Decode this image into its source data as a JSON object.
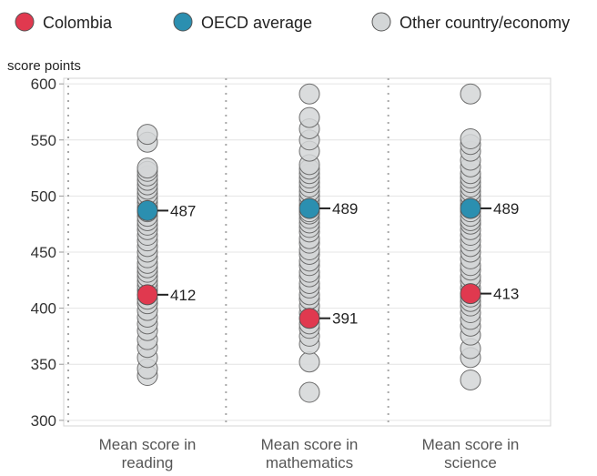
{
  "chart_data": {
    "type": "scatter",
    "ylabel": "score points",
    "ylim": [
      300,
      600
    ],
    "yticks": [
      300,
      350,
      400,
      450,
      500,
      550,
      600
    ],
    "grid": true,
    "legend_position": "top",
    "legend": [
      {
        "label": "Colombia",
        "color": "#e0394f"
      },
      {
        "label": "OECD average",
        "color": "#2b8fb0"
      },
      {
        "label": "Other country/economy",
        "color": "#d3d6d7"
      }
    ],
    "categories": [
      [
        "Mean score in",
        "reading"
      ],
      [
        "Mean score in",
        "mathematics"
      ],
      [
        "Mean score in",
        "science"
      ]
    ],
    "series": [
      {
        "name": "Other country/economy",
        "values": [
          [
            340,
            346,
            356,
            365,
            372,
            380,
            386,
            392,
            398,
            404,
            408,
            416,
            420,
            424,
            428,
            432,
            436,
            440,
            445,
            450,
            455,
            460,
            465,
            470,
            474,
            478,
            482,
            486,
            490,
            494,
            498,
            502,
            506,
            510,
            514,
            518,
            522,
            525,
            548,
            555
          ],
          [
            325,
            352,
            368,
            375,
            382,
            386,
            396,
            402,
            408,
            412,
            418,
            422,
            428,
            432,
            438,
            442,
            448,
            452,
            458,
            462,
            468,
            472,
            476,
            480,
            484,
            486,
            492,
            496,
            500,
            504,
            508,
            512,
            516,
            520,
            524,
            528,
            540,
            550,
            560,
            570,
            591
          ],
          [
            336,
            356,
            364,
            376,
            384,
            390,
            396,
            402,
            406,
            410,
            418,
            424,
            428,
            434,
            438,
            444,
            450,
            455,
            460,
            465,
            470,
            475,
            478,
            482,
            486,
            492,
            496,
            500,
            504,
            508,
            512,
            516,
            520,
            526,
            532,
            540,
            546,
            551,
            591
          ]
        ]
      },
      {
        "name": "Colombia",
        "values": [
          412,
          391,
          413
        ]
      },
      {
        "name": "OECD average",
        "values": [
          487,
          489,
          489
        ]
      }
    ]
  }
}
